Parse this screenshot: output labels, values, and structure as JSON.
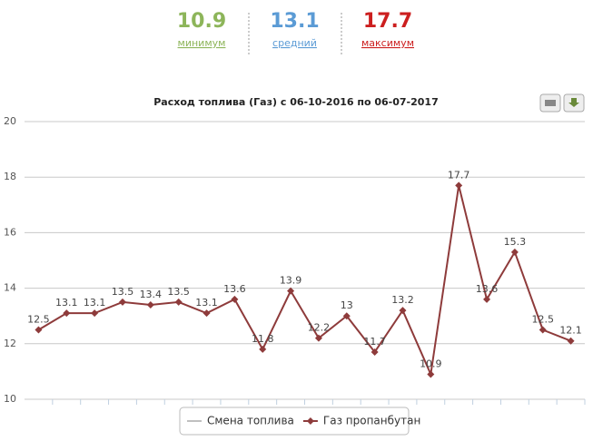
{
  "stats": [
    {
      "value": "10.9",
      "label": "минимум",
      "color": "#8db55a"
    },
    {
      "value": "13.1",
      "label": "средний",
      "color": "#5b9bd5"
    },
    {
      "value": "17.7",
      "label": "максимум",
      "color": "#cc1f1f"
    }
  ],
  "chart_data": {
    "type": "line",
    "title": "Расход топлива (Газ) с 06-10-2016 по 06-07-2017",
    "categories": [
      null,
      null,
      null,
      null,
      null,
      null,
      null,
      null,
      null,
      null,
      null,
      null,
      null,
      null,
      null,
      null,
      null,
      null,
      null,
      null
    ],
    "series": [
      {
        "name": "Смена топлива",
        "color": "#c0c0c0",
        "values": [
          null,
          null,
          null,
          null,
          null,
          null,
          null,
          null,
          null,
          null,
          null,
          null,
          null,
          null,
          null,
          null,
          null,
          null,
          null,
          null
        ]
      },
      {
        "name": "Газ пропанбутан",
        "color": "#8e3b3b",
        "values": [
          12.5,
          13.1,
          13.1,
          13.5,
          13.4,
          13.5,
          13.1,
          13.6,
          11.8,
          13.9,
          12.2,
          13,
          11.7,
          13.2,
          10.9,
          17.7,
          13.6,
          15.3,
          12.5,
          12.1
        ]
      }
    ],
    "ylim": [
      10,
      20
    ],
    "yticks": [
      10,
      12,
      14,
      16,
      18,
      20
    ],
    "grid": true
  }
}
